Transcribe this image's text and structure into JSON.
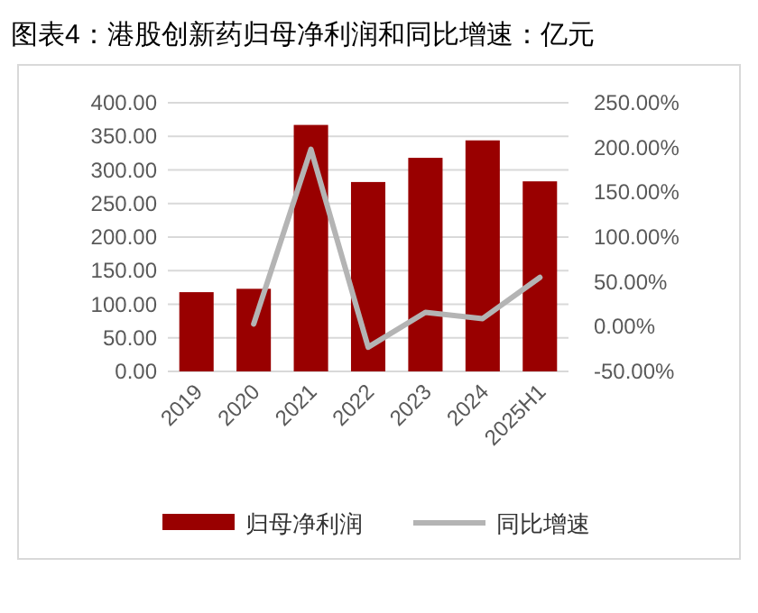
{
  "chart_data": {
    "type": "bar",
    "title": "图表4：港股创新药归母净利润和同比增速：亿元",
    "categories": [
      "2019",
      "2020",
      "2021",
      "2022",
      "2023",
      "2024",
      "2025H1"
    ],
    "series": [
      {
        "name": "归母净利润",
        "color": "#990000",
        "values": [
          118,
          123,
          367,
          282,
          318,
          344,
          283
        ]
      },
      {
        "name": "同比增速",
        "type": "line",
        "axis": "y2",
        "color": "#b4b4b4",
        "values": [
          null,
          3,
          198,
          -23,
          16,
          9,
          55
        ]
      }
    ],
    "ylim": [
      0,
      400
    ],
    "yticks": [
      {
        "value": 0,
        "label": "0.00"
      },
      {
        "value": 50,
        "label": "50.00"
      },
      {
        "value": 100,
        "label": "100.00"
      },
      {
        "value": 150,
        "label": "150.00"
      },
      {
        "value": 200,
        "label": "200.00"
      },
      {
        "value": 250,
        "label": "250.00"
      },
      {
        "value": 300,
        "label": "300.00"
      },
      {
        "value": 350,
        "label": "350.00"
      },
      {
        "value": 400,
        "label": "400.00"
      }
    ],
    "y2lim": [
      -50,
      250
    ],
    "y2ticks": [
      {
        "value": -50,
        "label": "-50.00%"
      },
      {
        "value": 0,
        "label": "0.00%"
      },
      {
        "value": 50,
        "label": "50.00%"
      },
      {
        "value": 100,
        "label": "100.00%"
      },
      {
        "value": 150,
        "label": "150.00%"
      },
      {
        "value": 200,
        "label": "200.00%"
      },
      {
        "value": 250,
        "label": "250.00%"
      }
    ],
    "grid": "y",
    "legend": "bottom",
    "line_style": "solid"
  }
}
